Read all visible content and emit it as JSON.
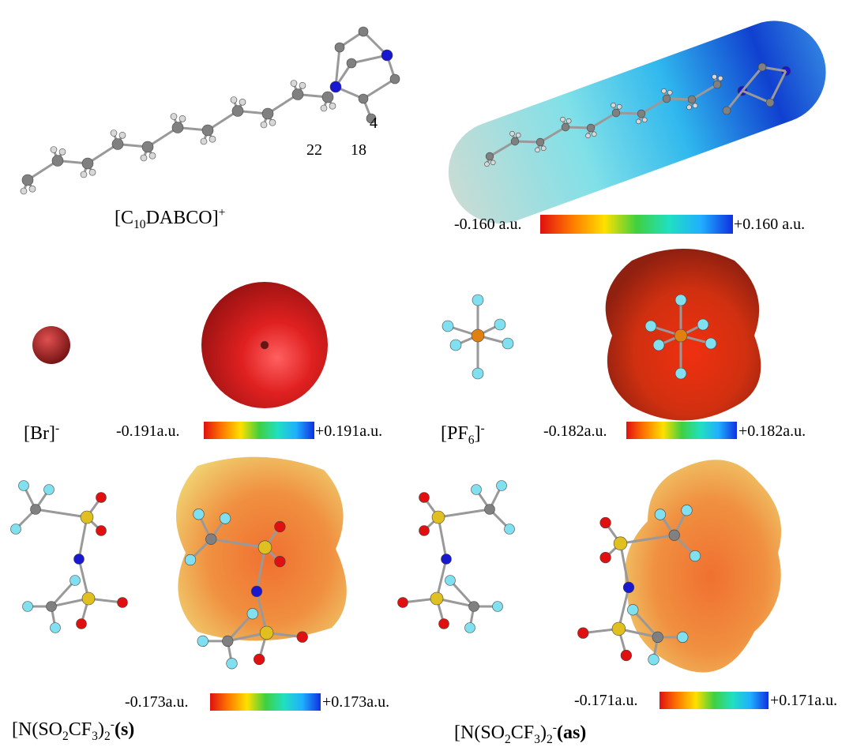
{
  "cation": {
    "label": {
      "open": "[C",
      "sub": "10",
      "rest": "DABCO]",
      "sup": "+"
    },
    "atom_labels": [
      "22",
      "18",
      "4"
    ],
    "scale": {
      "min": "-0.160 a.u.",
      "max": "+0.160 a.u."
    }
  },
  "bromide": {
    "label": {
      "main": "[Br]",
      "sup": "-"
    },
    "scale": {
      "min": "-0.191a.u.",
      "max": "+0.191a.u."
    }
  },
  "hexafluorophosphate": {
    "label": {
      "open": "[PF",
      "sub": "6",
      "close": "]",
      "sup": "-"
    },
    "scale": {
      "min": "-0.182a.u.",
      "max": "+0.182a.u."
    }
  },
  "tfsi_s": {
    "label": {
      "open": "[N(SO",
      "sub1": "2",
      "mid": "CF",
      "sub2": "3",
      "close": ")",
      "sub3": "2",
      "sup": "-",
      "conf": "(s)"
    },
    "scale": {
      "min": "-0.173a.u.",
      "max": "+0.173a.u."
    }
  },
  "tfsi_as": {
    "label": {
      "open": "[N(SO",
      "sub1": "2",
      "mid": "CF",
      "sub2": "3",
      "close": ")",
      "sub3": "2",
      "sup": "-",
      "conf": "(as)"
    },
    "scale": {
      "min": "-0.171a.u.",
      "max": "+0.171a.u."
    }
  }
}
